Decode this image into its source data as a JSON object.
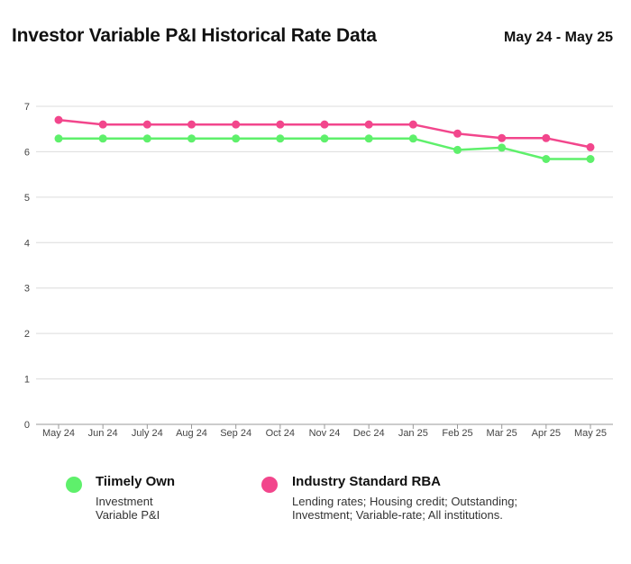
{
  "header": {
    "title": "Investor Variable P&I Historical Rate Data",
    "date_range": "May 24 - May 25"
  },
  "chart_data": {
    "type": "line",
    "title": "",
    "xlabel": "",
    "ylabel": "",
    "categories": [
      "May 24",
      "Jun 24",
      "July 24",
      "Aug 24",
      "Sep 24",
      "Oct 24",
      "Nov 24",
      "Dec 24",
      "Jan 25",
      "Feb 25",
      "Mar 25",
      "Apr 25",
      "May 25"
    ],
    "y_ticks": [
      "0",
      "1",
      "2",
      "3",
      "4",
      "5",
      "6",
      "7"
    ],
    "ylim": [
      0,
      7
    ],
    "grid": true,
    "legend_position": "bottom",
    "series": [
      {
        "name": "Tiimely Own",
        "color": "#5ef06b",
        "values": [
          6.29,
          6.29,
          6.29,
          6.29,
          6.29,
          6.29,
          6.29,
          6.29,
          6.29,
          6.04,
          6.09,
          5.84,
          5.84
        ]
      },
      {
        "name": "Industry Standard RBA",
        "color": "#f2468c",
        "values": [
          6.7,
          6.6,
          6.6,
          6.6,
          6.6,
          6.6,
          6.6,
          6.6,
          6.6,
          6.4,
          6.3,
          6.3,
          6.1
        ]
      }
    ]
  },
  "legend": [
    {
      "name": "Tiimely Own",
      "color": "#5ef06b",
      "desc": [
        "Investment",
        "Variable P&I"
      ]
    },
    {
      "name": "Industry Standard RBA",
      "color": "#f2468c",
      "desc": [
        "Lending rates; Housing credit; Outstanding;",
        "Investment; Variable-rate; All institutions."
      ]
    }
  ]
}
